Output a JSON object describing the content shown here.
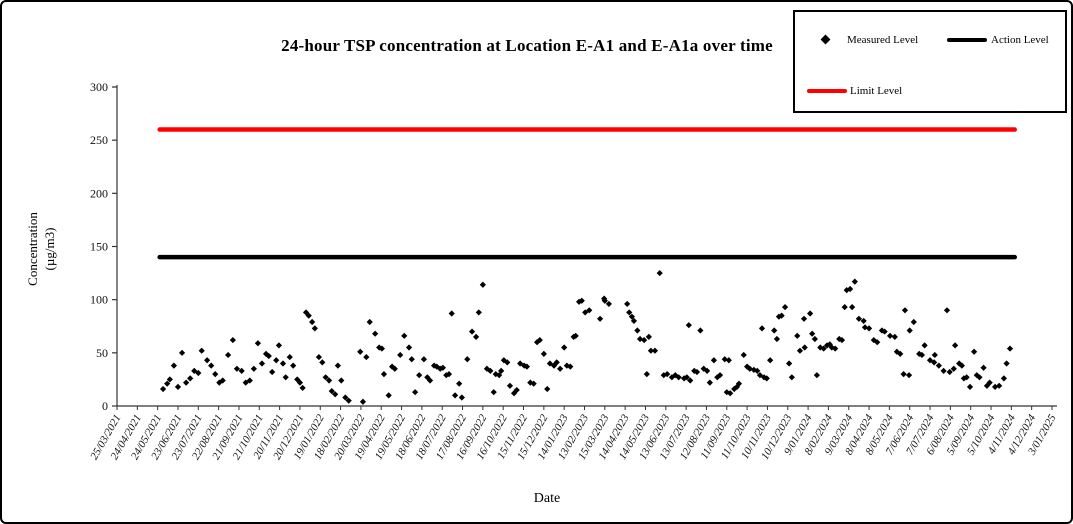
{
  "chart_data": {
    "type": "scatter",
    "title": "24-hour TSP concentration at Location E-A1 and E-A1a over time",
    "xlabel": "Date",
    "ylabel_line1": "Concentration",
    "ylabel_line2": "(µg/m3)",
    "ylim": [
      0,
      300
    ],
    "y_ticks": [
      0,
      50,
      100,
      150,
      200,
      250,
      300
    ],
    "x_unit": "days since 25/03/2021 (axis start); ticks every 30 days",
    "x_axis_start": "25/03/2021",
    "x_axis_end": "3/01/2025",
    "grid": false,
    "legend_position": "top-right",
    "x_tick_labels": [
      "25/03/2021",
      "24/04/2021",
      "24/05/2021",
      "23/06/2021",
      "23/07/2021",
      "22/08/2021",
      "21/09/2021",
      "21/10/2021",
      "20/11/2021",
      "20/12/2021",
      "19/01/2022",
      "18/02/2022",
      "20/03/2022",
      "19/04/2022",
      "19/05/2022",
      "18/06/2022",
      "18/07/2022",
      "17/08/2022",
      "16/09/2022",
      "16/10/2022",
      "15/11/2022",
      "15/12/2022",
      "14/01/2023",
      "13/02/2023",
      "15/03/2023",
      "14/04/2023",
      "14/05/2023",
      "13/06/2023",
      "13/07/2023",
      "12/08/2023",
      "11/09/2023",
      "11/10/2023",
      "10/11/2023",
      "10/12/2023",
      "9/01/2024",
      "8/02/2024",
      "9/03/2024",
      "8/04/2024",
      "8/05/2024",
      "7/06/2024",
      "7/07/2024",
      "6/08/2024",
      "5/09/2024",
      "5/10/2024",
      "4/11/2024",
      "4/12/2024",
      "3/01/2025"
    ],
    "lines": [
      {
        "name": "Action Level",
        "value": 140,
        "color": "#000000",
        "x_start_day": 63,
        "x_end_day": 1325
      },
      {
        "name": "Limit Level",
        "value": 260,
        "color": "#ff0000",
        "x_start_day": 63,
        "x_end_day": 1325
      }
    ],
    "series": [
      {
        "name": "Measured Level",
        "marker": "diamond",
        "color": "#000000",
        "points": [
          [
            68,
            16
          ],
          [
            74,
            21
          ],
          [
            78,
            25
          ],
          [
            84,
            38
          ],
          [
            90,
            18
          ],
          [
            96,
            50
          ],
          [
            102,
            22
          ],
          [
            108,
            26
          ],
          [
            114,
            33
          ],
          [
            120,
            31
          ],
          [
            125,
            52
          ],
          [
            133,
            43
          ],
          [
            139,
            38
          ],
          [
            145,
            30
          ],
          [
            151,
            22
          ],
          [
            156,
            24
          ],
          [
            164,
            48
          ],
          [
            171,
            62
          ],
          [
            177,
            35
          ],
          [
            184,
            33
          ],
          [
            190,
            22
          ],
          [
            196,
            24
          ],
          [
            202,
            35
          ],
          [
            208,
            59
          ],
          [
            214,
            40
          ],
          [
            220,
            49
          ],
          [
            224,
            47
          ],
          [
            229,
            32
          ],
          [
            235,
            43
          ],
          [
            239,
            57
          ],
          [
            245,
            40
          ],
          [
            249,
            27
          ],
          [
            255,
            46
          ],
          [
            260,
            38
          ],
          [
            266,
            25
          ],
          [
            270,
            22
          ],
          [
            274,
            17
          ],
          [
            279,
            88
          ],
          [
            283,
            85
          ],
          [
            288,
            79
          ],
          [
            292,
            73
          ],
          [
            298,
            46
          ],
          [
            303,
            41
          ],
          [
            308,
            27
          ],
          [
            313,
            24
          ],
          [
            317,
            14
          ],
          [
            322,
            11
          ],
          [
            326,
            38
          ],
          [
            331,
            24
          ],
          [
            337,
            8
          ],
          [
            342,
            5
          ],
          [
            359,
            51
          ],
          [
            363,
            4
          ],
          [
            368,
            46
          ],
          [
            373,
            79
          ],
          [
            381,
            68
          ],
          [
            387,
            55
          ],
          [
            391,
            54
          ],
          [
            394,
            30
          ],
          [
            401,
            10
          ],
          [
            406,
            37
          ],
          [
            410,
            35
          ],
          [
            418,
            48
          ],
          [
            424,
            66
          ],
          [
            431,
            55
          ],
          [
            435,
            44
          ],
          [
            440,
            13
          ],
          [
            446,
            29
          ],
          [
            453,
            44
          ],
          [
            458,
            27
          ],
          [
            462,
            24
          ],
          [
            468,
            38
          ],
          [
            472,
            37
          ],
          [
            477,
            35
          ],
          [
            481,
            36
          ],
          [
            486,
            29
          ],
          [
            490,
            30
          ],
          [
            494,
            87
          ],
          [
            499,
            10
          ],
          [
            505,
            21
          ],
          [
            509,
            8
          ],
          [
            517,
            44
          ],
          [
            524,
            70
          ],
          [
            530,
            65
          ],
          [
            534,
            88
          ],
          [
            540,
            114
          ],
          [
            546,
            35
          ],
          [
            551,
            33
          ],
          [
            556,
            13
          ],
          [
            559,
            30
          ],
          [
            564,
            29
          ],
          [
            567,
            33
          ],
          [
            571,
            43
          ],
          [
            576,
            41
          ],
          [
            580,
            19
          ],
          [
            586,
            12
          ],
          [
            590,
            15
          ],
          [
            595,
            40
          ],
          [
            601,
            38
          ],
          [
            605,
            37
          ],
          [
            610,
            22
          ],
          [
            615,
            21
          ],
          [
            620,
            60
          ],
          [
            624,
            62
          ],
          [
            630,
            49
          ],
          [
            635,
            16
          ],
          [
            639,
            40
          ],
          [
            645,
            38
          ],
          [
            649,
            41
          ],
          [
            654,
            35
          ],
          [
            660,
            55
          ],
          [
            664,
            38
          ],
          [
            669,
            37
          ],
          [
            674,
            65
          ],
          [
            677,
            66
          ],
          [
            682,
            98
          ],
          [
            686,
            99
          ],
          [
            691,
            88
          ],
          [
            697,
            90
          ],
          [
            713,
            82
          ],
          [
            719,
            101
          ],
          [
            720,
            99
          ],
          [
            726,
            96
          ],
          [
            753,
            96
          ],
          [
            756,
            88
          ],
          [
            760,
            84
          ],
          [
            763,
            80
          ],
          [
            768,
            71
          ],
          [
            772,
            63
          ],
          [
            778,
            62
          ],
          [
            782,
            30
          ],
          [
            785,
            65
          ],
          [
            788,
            52
          ],
          [
            794,
            52
          ],
          [
            801,
            125
          ],
          [
            807,
            29
          ],
          [
            812,
            30
          ],
          [
            819,
            27
          ],
          [
            824,
            29
          ],
          [
            829,
            27
          ],
          [
            837,
            26
          ],
          [
            841,
            27
          ],
          [
            844,
            76
          ],
          [
            846,
            24
          ],
          [
            852,
            33
          ],
          [
            856,
            32
          ],
          [
            861,
            71
          ],
          [
            866,
            35
          ],
          [
            871,
            33
          ],
          [
            875,
            22
          ],
          [
            881,
            43
          ],
          [
            886,
            27
          ],
          [
            890,
            29
          ],
          [
            897,
            44
          ],
          [
            900,
            13
          ],
          [
            903,
            43
          ],
          [
            905,
            12
          ],
          [
            911,
            16
          ],
          [
            915,
            18
          ],
          [
            918,
            21
          ],
          [
            925,
            48
          ],
          [
            930,
            37
          ],
          [
            934,
            35
          ],
          [
            940,
            34
          ],
          [
            945,
            33
          ],
          [
            949,
            29
          ],
          [
            952,
            73
          ],
          [
            955,
            27
          ],
          [
            959,
            26
          ],
          [
            964,
            43
          ],
          [
            970,
            71
          ],
          [
            974,
            63
          ],
          [
            977,
            84
          ],
          [
            981,
            85
          ],
          [
            986,
            93
          ],
          [
            992,
            40
          ],
          [
            996,
            27
          ],
          [
            1004,
            66
          ],
          [
            1008,
            52
          ],
          [
            1014,
            82
          ],
          [
            1015,
            55
          ],
          [
            1023,
            87
          ],
          [
            1026,
            68
          ],
          [
            1030,
            63
          ],
          [
            1033,
            29
          ],
          [
            1038,
            55
          ],
          [
            1043,
            54
          ],
          [
            1048,
            57
          ],
          [
            1052,
            58
          ],
          [
            1055,
            55
          ],
          [
            1060,
            54
          ],
          [
            1066,
            63
          ],
          [
            1070,
            62
          ],
          [
            1074,
            93
          ],
          [
            1077,
            109
          ],
          [
            1082,
            110
          ],
          [
            1085,
            93
          ],
          [
            1089,
            117
          ],
          [
            1095,
            82
          ],
          [
            1102,
            80
          ],
          [
            1104,
            74
          ],
          [
            1110,
            73
          ],
          [
            1117,
            62
          ],
          [
            1122,
            60
          ],
          [
            1129,
            71
          ],
          [
            1133,
            70
          ],
          [
            1141,
            66
          ],
          [
            1148,
            65
          ],
          [
            1151,
            51
          ],
          [
            1156,
            49
          ],
          [
            1161,
            30
          ],
          [
            1163,
            90
          ],
          [
            1169,
            29
          ],
          [
            1170,
            71
          ],
          [
            1176,
            79
          ],
          [
            1184,
            49
          ],
          [
            1188,
            48
          ],
          [
            1192,
            57
          ],
          [
            1200,
            43
          ],
          [
            1206,
            41
          ],
          [
            1207,
            48
          ],
          [
            1213,
            38
          ],
          [
            1220,
            33
          ],
          [
            1225,
            90
          ],
          [
            1229,
            32
          ],
          [
            1235,
            35
          ],
          [
            1237,
            57
          ],
          [
            1243,
            40
          ],
          [
            1247,
            38
          ],
          [
            1250,
            26
          ],
          [
            1254,
            27
          ],
          [
            1259,
            18
          ],
          [
            1265,
            51
          ],
          [
            1269,
            29
          ],
          [
            1273,
            27
          ],
          [
            1279,
            36
          ],
          [
            1284,
            19
          ],
          [
            1288,
            22
          ],
          [
            1296,
            18
          ],
          [
            1302,
            19
          ],
          [
            1309,
            26
          ],
          [
            1313,
            40
          ],
          [
            1318,
            54
          ]
        ]
      }
    ]
  },
  "colors": {
    "limit_level": "#ff0000",
    "action_level": "#000000",
    "marker": "#000000",
    "axis": "#333333"
  }
}
